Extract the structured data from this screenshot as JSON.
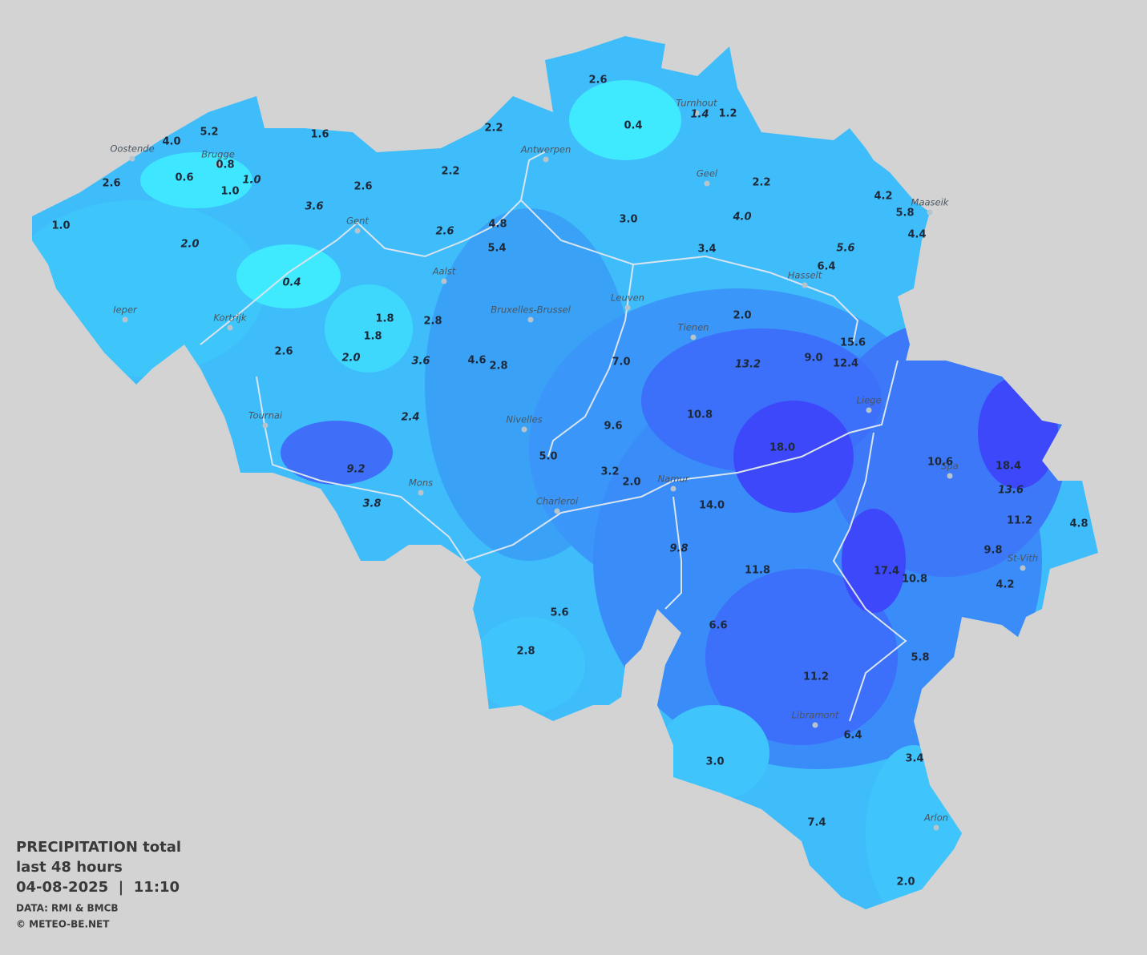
{
  "legend": {
    "title": "PRECIPITATION total",
    "period": "last 48 hours",
    "timestamp": "04-08-2025  |  11:10",
    "source": "DATA: RMI & BMCB",
    "copyright": "© METEO-BE.NET"
  },
  "cities": [
    "Oostende",
    "Brugge",
    "Gent",
    "Antwerpen",
    "Turnhout",
    "Geel",
    "Maaseik",
    "Aalst",
    "Ieper",
    "Kortrijk",
    "Bruxelles-Brussel",
    "Leuven",
    "Tienen",
    "Hasselt",
    "Liege",
    "Tournai",
    "Nivelles",
    "Mons",
    "Charleroi",
    "Namur",
    "Spa",
    "St-Vith",
    "Libramont",
    "Arlon"
  ],
  "values": [
    "2.6",
    "0.4",
    "1.4",
    "1.2",
    "5.2",
    "4.0",
    "1.6",
    "2.2",
    "0.8",
    "0.6",
    "1.0",
    "1.0",
    "2.6",
    "2.2",
    "2.6",
    "2.2",
    "4.2",
    "5.8",
    "4.4",
    "1.0",
    "3.6",
    "4.8",
    "2.6",
    "3.0",
    "4.0",
    "2.0",
    "5.4",
    "3.4",
    "5.6",
    "6.4",
    "0.4",
    "1.8",
    "2.8",
    "1.8",
    "2.0",
    "2.6",
    "2.0",
    "3.6",
    "4.6",
    "2.8",
    "7.0",
    "13.2",
    "9.0",
    "15.6",
    "12.4",
    "2.4",
    "10.8",
    "9.6",
    "18.0",
    "5.0",
    "9.2",
    "3.2",
    "2.0",
    "10.6",
    "18.4",
    "13.6",
    "3.8",
    "14.0",
    "11.2",
    "4.8",
    "9.8",
    "9.8",
    "11.8",
    "17.4",
    "10.8",
    "4.2",
    "5.6",
    "6.6",
    "2.8",
    "5.8",
    "11.2",
    "6.4",
    "3.0",
    "3.4",
    "7.4",
    "2.0"
  ]
}
